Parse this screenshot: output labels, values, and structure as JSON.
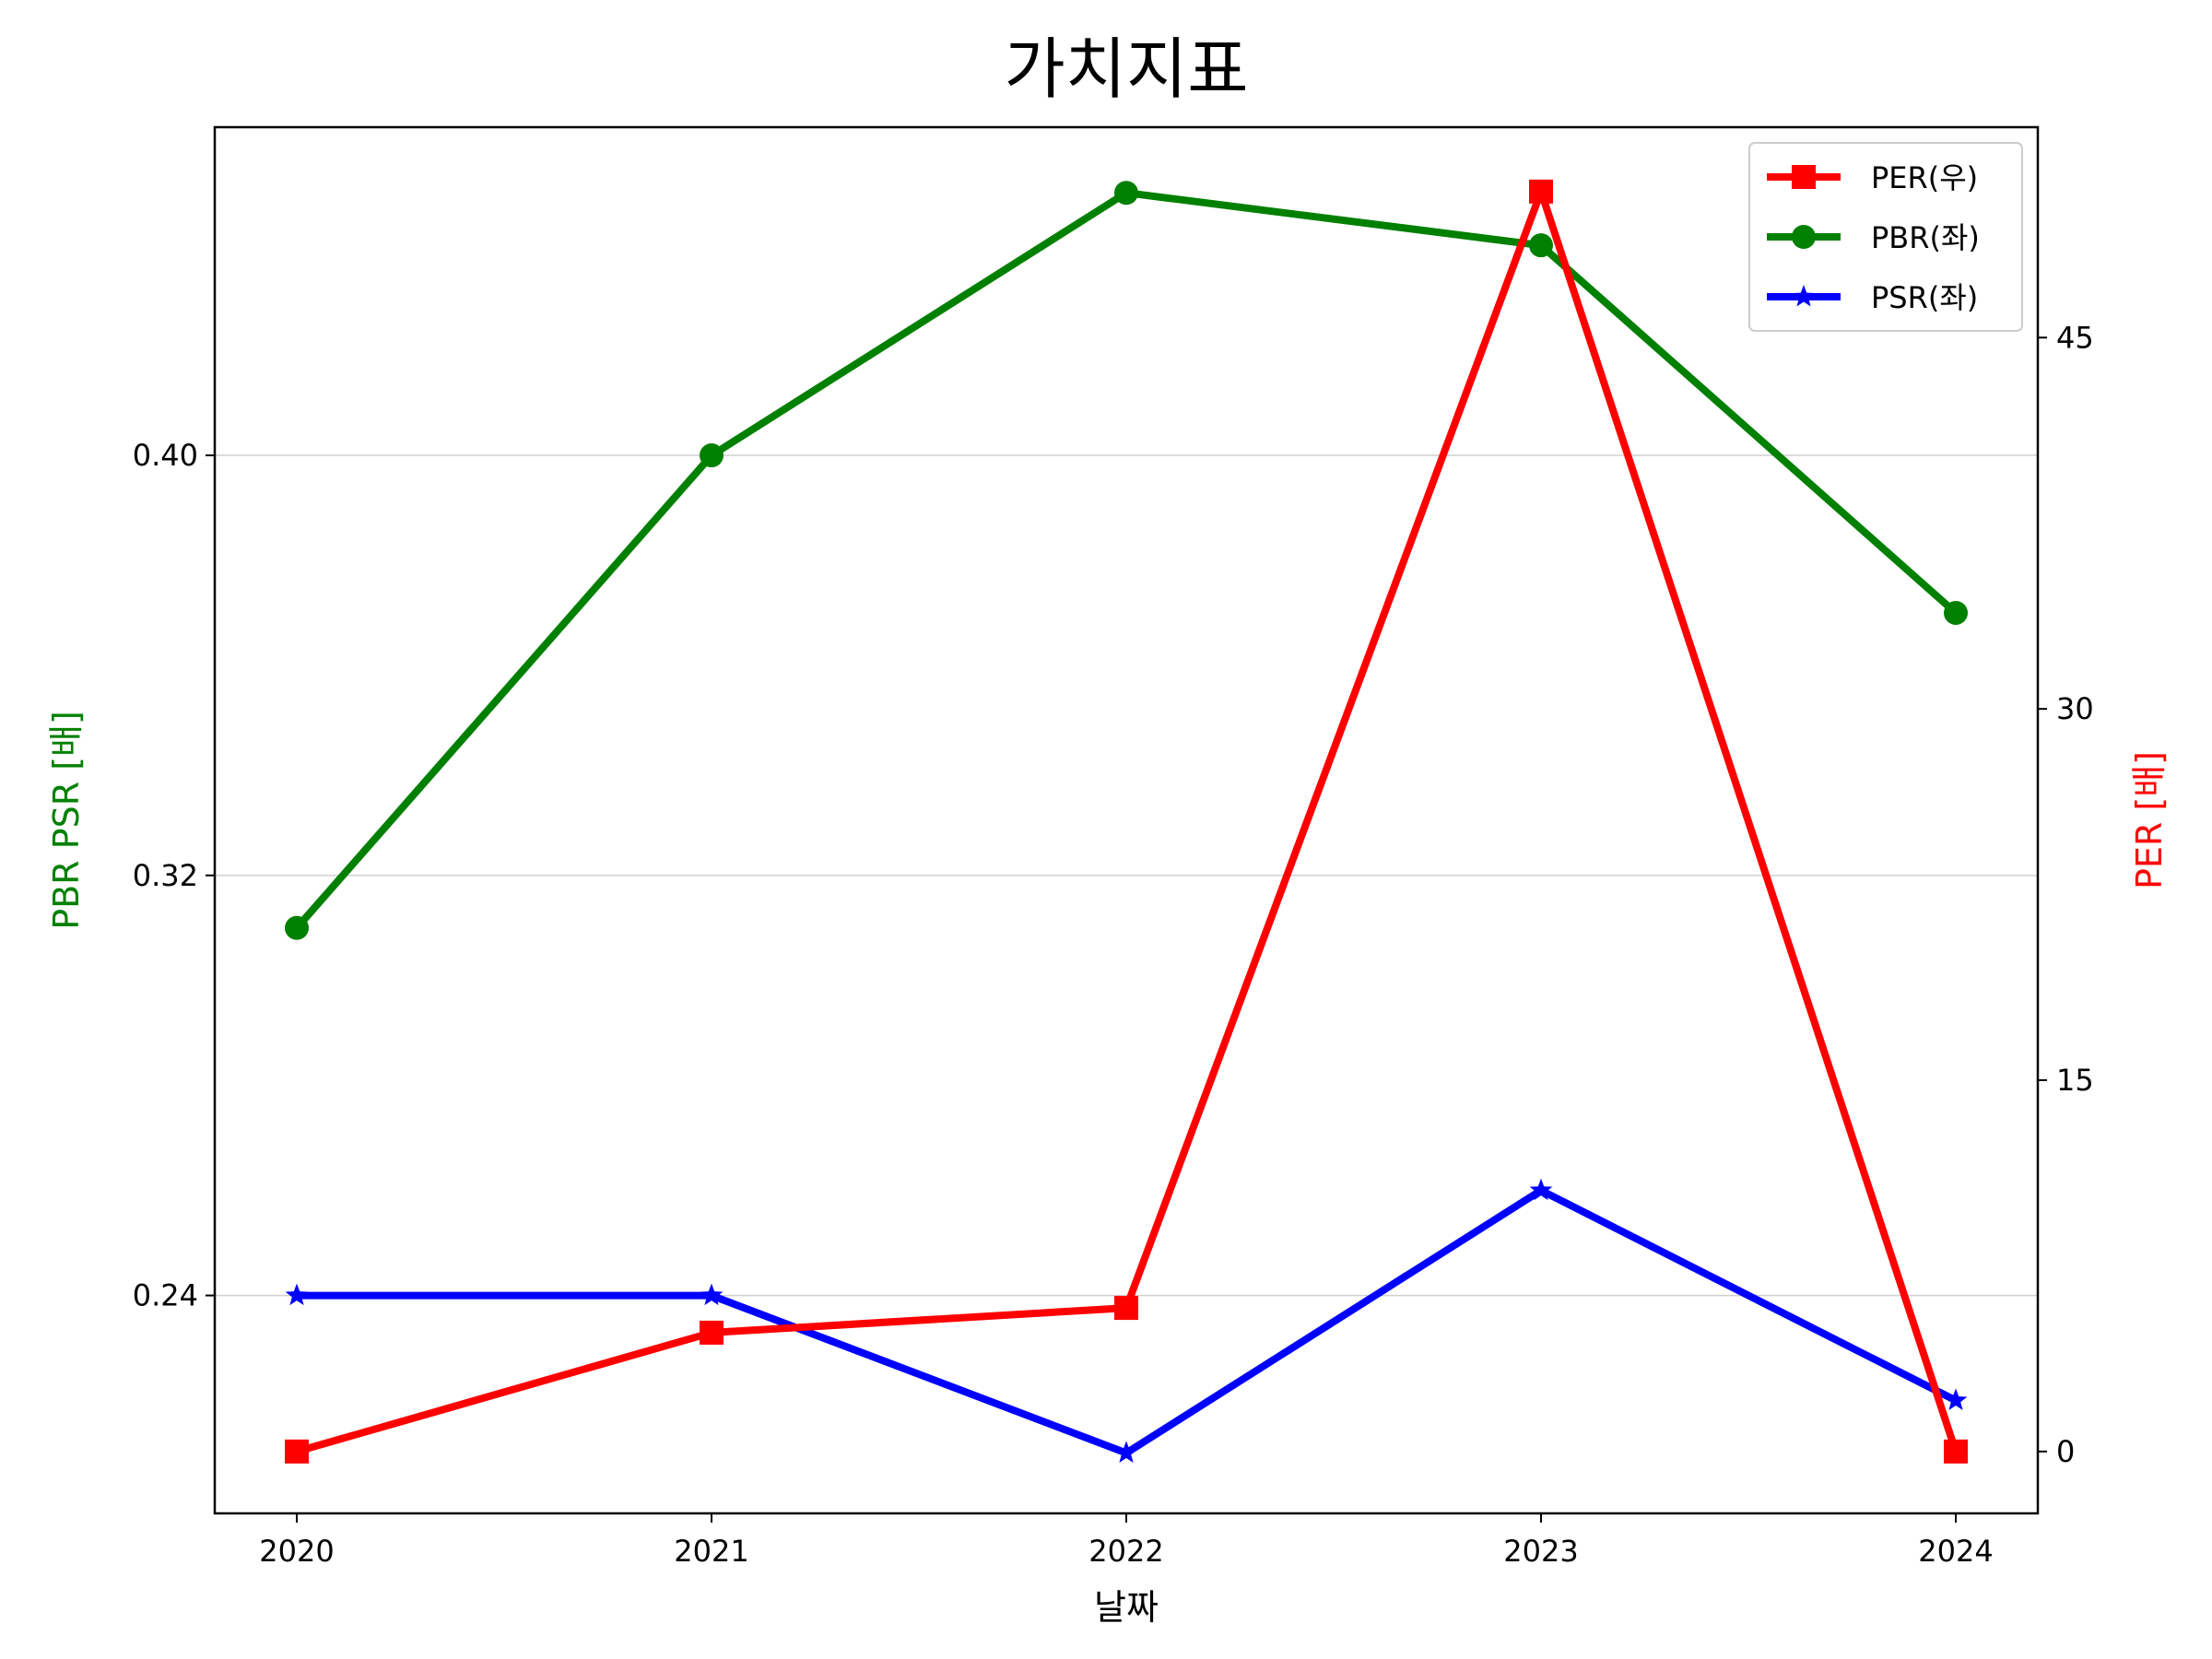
{
  "chart_data": {
    "type": "line",
    "title": "가치지표",
    "xlabel": "날짜",
    "ylabel_left": "PBR PSR [배]",
    "ylabel_right": "PER [배]",
    "ylabel_left_color": "#008000",
    "ylabel_right_color": "#ff0000",
    "categories": [
      "2020",
      "2021",
      "2022",
      "2023",
      "2024"
    ],
    "ylim_left": [
      0.1985,
      0.4625
    ],
    "ylim_right": [
      -2.5,
      53.5
    ],
    "yticks_left": [
      {
        "value": 0.24,
        "label": "0.24"
      },
      {
        "value": 0.32,
        "label": "0.32"
      },
      {
        "value": 0.4,
        "label": "0.40"
      }
    ],
    "yticks_right": [
      {
        "value": 0,
        "label": "0"
      },
      {
        "value": 15,
        "label": "15"
      },
      {
        "value": 30,
        "label": "30"
      },
      {
        "value": 45,
        "label": "45"
      }
    ],
    "grid": "horizontal (left axis)",
    "legend_position": "top-right",
    "series": [
      {
        "name": "PER(우)",
        "axis": "right",
        "color": "#ff0000",
        "marker": "square",
        "values": [
          0,
          4.8,
          5.8,
          50.9,
          0
        ]
      },
      {
        "name": "PBR(좌)",
        "axis": "left",
        "color": "#008000",
        "marker": "circle",
        "values": [
          0.31,
          0.4,
          0.45,
          0.44,
          0.37
        ]
      },
      {
        "name": "PSR(좌)",
        "axis": "left",
        "color": "#0000ff",
        "marker": "star",
        "values": [
          0.24,
          0.24,
          0.21,
          0.26,
          0.22
        ]
      }
    ]
  }
}
